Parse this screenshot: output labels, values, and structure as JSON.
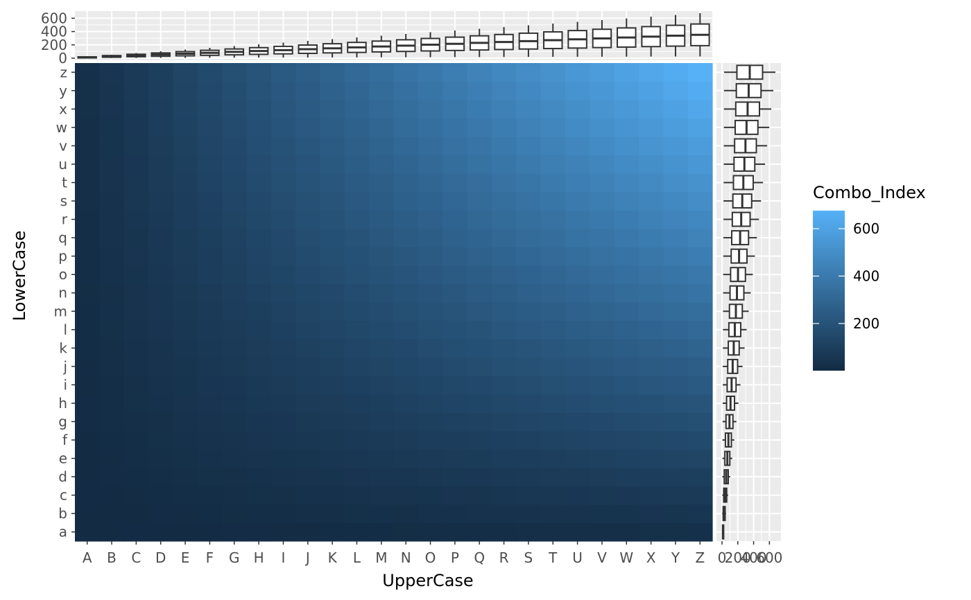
{
  "chart_data": [
    {
      "name": "main-heatmap",
      "type": "heatmap",
      "xlabel": "UpperCase",
      "ylabel": "LowerCase",
      "x_categories": [
        "A",
        "B",
        "C",
        "D",
        "E",
        "F",
        "G",
        "H",
        "I",
        "J",
        "K",
        "L",
        "M",
        "N",
        "O",
        "P",
        "Q",
        "R",
        "S",
        "T",
        "U",
        "V",
        "W",
        "X",
        "Y",
        "Z"
      ],
      "y_categories": [
        "a",
        "b",
        "c",
        "d",
        "e",
        "f",
        "g",
        "h",
        "i",
        "j",
        "k",
        "l",
        "m",
        "n",
        "o",
        "p",
        "q",
        "r",
        "s",
        "t",
        "u",
        "v",
        "w",
        "x",
        "y",
        "z"
      ],
      "value_rule": "Combo_Index = (UpperCase position) * (LowerCase position), positions 1..26",
      "value_range": [
        1,
        676
      ],
      "colors": {
        "low": "#132B43",
        "high": "#56B1F7",
        "panel_bg": "#EBEBEB",
        "grid": "#FFFFFF"
      },
      "legend": {
        "title": "Combo_Index",
        "breaks": [
          200,
          400,
          600
        ],
        "labels": [
          "200",
          "400",
          "600"
        ],
        "placement": "right"
      }
    },
    {
      "name": "top-marginal-boxplot",
      "type": "box",
      "orientation": "vertical",
      "categories": [
        "A",
        "B",
        "C",
        "D",
        "E",
        "F",
        "G",
        "H",
        "I",
        "J",
        "K",
        "L",
        "M",
        "N",
        "O",
        "P",
        "Q",
        "R",
        "S",
        "T",
        "U",
        "V",
        "W",
        "X",
        "Y",
        "Z"
      ],
      "ylim": [
        0,
        676
      ],
      "y_ticks": [
        0,
        200,
        400,
        600
      ],
      "y_tick_labels": [
        "0",
        "200",
        "400",
        "600"
      ],
      "x_tick_labels_shown": false
    },
    {
      "name": "right-marginal-boxplot",
      "type": "box",
      "orientation": "horizontal",
      "categories": [
        "a",
        "b",
        "c",
        "d",
        "e",
        "f",
        "g",
        "h",
        "i",
        "j",
        "k",
        "l",
        "m",
        "n",
        "o",
        "p",
        "q",
        "r",
        "s",
        "t",
        "u",
        "v",
        "w",
        "x",
        "y",
        "z"
      ],
      "xlim": [
        0,
        676
      ],
      "x_ticks": [
        0,
        200,
        400,
        600
      ],
      "x_tick_labels": [
        "0",
        "200",
        "400",
        "600"
      ],
      "y_tick_labels_shown": false
    }
  ]
}
